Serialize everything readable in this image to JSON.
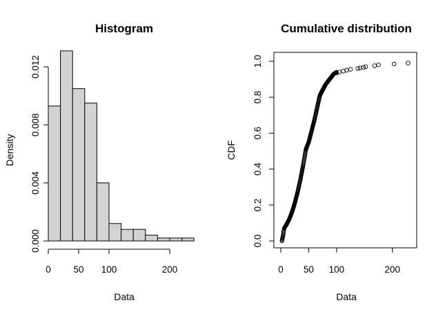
{
  "chart_data": [
    {
      "type": "bar",
      "title": "Histogram",
      "xlabel": "Data",
      "ylabel": "Density",
      "xlim": [
        0,
        250
      ],
      "ylim": [
        0,
        0.013
      ],
      "bin_edges": [
        0,
        20,
        40,
        60,
        80,
        100,
        120,
        140,
        160,
        180,
        200,
        220,
        240
      ],
      "values": [
        0.0093,
        0.0131,
        0.0105,
        0.0095,
        0.004,
        0.0012,
        0.0008,
        0.0008,
        0.0004,
        0.0002,
        0.0002,
        0.0002
      ],
      "x_ticks": [
        0,
        50,
        100,
        200
      ],
      "x_tick_labels": [
        "0",
        "50",
        "100",
        "200"
      ],
      "y_ticks": [
        0,
        0.004,
        0.008,
        0.012
      ],
      "y_tick_labels": [
        "0.000",
        "0.004",
        "0.008",
        "0.012"
      ],
      "bar_color": "#d3d3d3",
      "grid": false
    },
    {
      "type": "scatter",
      "title": "Cumulative distribution",
      "xlabel": "Data",
      "ylabel": "CDF",
      "xlim": [
        0,
        240
      ],
      "ylim": [
        0,
        1
      ],
      "curve": [
        [
          2,
          0.0
        ],
        [
          4,
          0.03
        ],
        [
          6,
          0.07
        ],
        [
          10,
          0.09
        ],
        [
          15,
          0.12
        ],
        [
          20,
          0.16
        ],
        [
          25,
          0.21
        ],
        [
          30,
          0.27
        ],
        [
          35,
          0.34
        ],
        [
          40,
          0.42
        ],
        [
          45,
          0.51
        ],
        [
          50,
          0.55
        ],
        [
          55,
          0.61
        ],
        [
          60,
          0.67
        ],
        [
          65,
          0.74
        ],
        [
          70,
          0.81
        ],
        [
          75,
          0.84
        ],
        [
          80,
          0.87
        ],
        [
          85,
          0.89
        ],
        [
          90,
          0.91
        ],
        [
          95,
          0.93
        ],
        [
          100,
          0.94
        ]
      ],
      "tail_points": [
        [
          100,
          0.935
        ],
        [
          105,
          0.94
        ],
        [
          112,
          0.945
        ],
        [
          118,
          0.95
        ],
        [
          125,
          0.955
        ],
        [
          138,
          0.96
        ],
        [
          142,
          0.963
        ],
        [
          148,
          0.966
        ],
        [
          152,
          0.97
        ],
        [
          168,
          0.975
        ],
        [
          175,
          0.98
        ],
        [
          203,
          0.985
        ],
        [
          228,
          0.99
        ]
      ],
      "x_ticks": [
        0,
        50,
        100,
        200
      ],
      "x_tick_labels": [
        "0",
        "50",
        "100",
        "200"
      ],
      "y_ticks": [
        0,
        0.2,
        0.4,
        0.6,
        0.8,
        1.0
      ],
      "y_tick_labels": [
        "0.0",
        "0.2",
        "0.4",
        "0.6",
        "0.8",
        "1.0"
      ],
      "marker": "open-circle",
      "grid": false
    }
  ]
}
